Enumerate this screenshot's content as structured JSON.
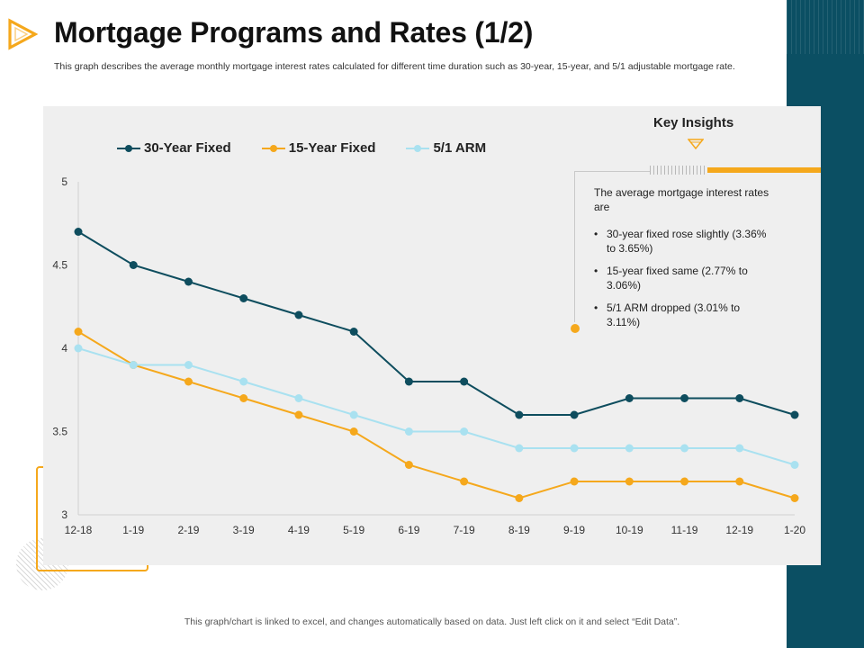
{
  "slide": {
    "title": "Mortgage Programs and Rates (1/2)",
    "subtitle": "This graph describes the average monthly mortgage interest rates calculated for different time duration such as 30-year, 15-year, and 5/1 adjustable mortgage rate.",
    "footer_note": "This graph/chart is linked to excel, and changes automatically based on data. Just left click on it and select “Edit Data”.",
    "accent_color": "#f5a81c",
    "band_color": "#0b4f63"
  },
  "insights": {
    "title": "Key Insights",
    "intro": "The average  mortgage interest rates are",
    "items": [
      "30-year fixed rose slightly (3.36% to 3.65%)",
      "15-year fixed same (2.77% to 3.06%)",
      "5/1 ARM dropped (3.01% to 3.11%)"
    ]
  },
  "chart_data": {
    "type": "line",
    "title": "",
    "xlabel": "",
    "ylabel": "",
    "ylim": [
      3,
      5
    ],
    "yticks": [
      3,
      3.5,
      4,
      4.5,
      5
    ],
    "ytick_labels": [
      "3",
      "3.5",
      "4",
      "4.5",
      "5"
    ],
    "grid": false,
    "legend_position": "top-left",
    "categories": [
      "12-18",
      "1-19",
      "2-19",
      "3-19",
      "4-19",
      "5-19",
      "6-19",
      "7-19",
      "8-19",
      "9-19",
      "10-19",
      "11-19",
      "12-19",
      "1-20"
    ],
    "series": [
      {
        "name": "30-Year Fixed",
        "color": "#0e4d5e",
        "values": [
          4.7,
          4.5,
          4.4,
          4.3,
          4.2,
          4.1,
          3.8,
          3.8,
          3.6,
          3.6,
          3.7,
          3.7,
          3.7,
          3.6
        ]
      },
      {
        "name": "15-Year Fixed",
        "color": "#f5a81c",
        "values": [
          4.1,
          3.9,
          3.8,
          3.7,
          3.6,
          3.5,
          3.3,
          3.2,
          3.1,
          3.2,
          3.2,
          3.2,
          3.2,
          3.1
        ]
      },
      {
        "name": "5/1 ARM",
        "color": "#a9e1f0",
        "values": [
          4.0,
          3.9,
          3.9,
          3.8,
          3.7,
          3.6,
          3.5,
          3.5,
          3.4,
          3.4,
          3.4,
          3.4,
          3.4,
          3.3
        ]
      }
    ]
  }
}
